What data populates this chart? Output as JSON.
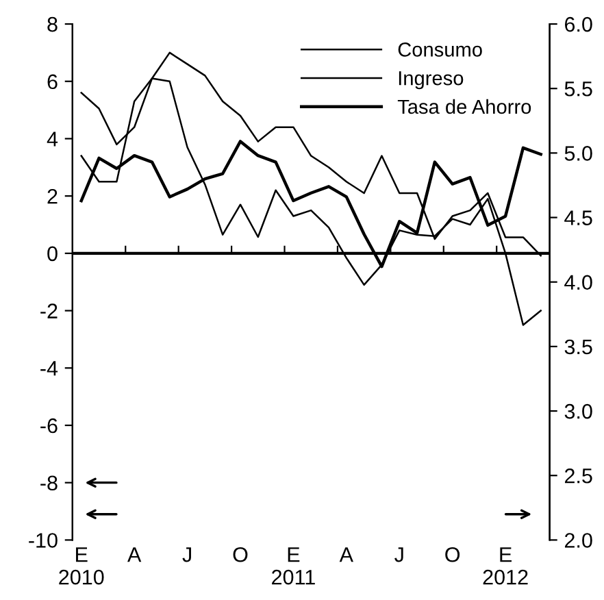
{
  "chart_data": {
    "type": "line",
    "categories": [
      "E\n2010",
      null,
      null,
      "A",
      null,
      null,
      "J",
      null,
      null,
      "O",
      null,
      null,
      "E\n2011",
      null,
      null,
      "A",
      null,
      null,
      "J",
      null,
      null,
      "O",
      null,
      null,
      "E\n2012",
      null,
      null
    ],
    "series": [
      {
        "name": "Consumo",
        "color": "#000000",
        "values": [
          3.4,
          2.5,
          2.5,
          5.3,
          6.1,
          6.0,
          3.7,
          2.4,
          0.65,
          1.7,
          0.57,
          2.2,
          1.3,
          1.5,
          0.9,
          -0.16,
          -1.1,
          -0.4,
          0.8,
          0.65,
          0.6,
          1.2,
          1.0,
          1.9,
          0.0,
          -2.5,
          -2.0
        ]
      },
      {
        "name": "Ingreso",
        "color": "#000000",
        "values": [
          5.6,
          5.05,
          3.8,
          4.4,
          6.1,
          7.0,
          6.6,
          6.2,
          5.3,
          4.8,
          3.9,
          4.4,
          4.4,
          3.4,
          3.0,
          2.5,
          2.1,
          3.4,
          2.1,
          2.1,
          0.5,
          1.3,
          1.5,
          2.1,
          0.56,
          0.56,
          -0.08
        ]
      },
      {
        "name": "Tasa de Ahorro",
        "color": "#000000",
        "axis": "y2",
        "values": [
          4.63,
          4.96,
          4.88,
          4.98,
          4.93,
          4.66,
          4.72,
          4.8,
          4.84,
          5.09,
          4.98,
          4.93,
          4.63,
          4.69,
          4.74,
          4.66,
          4.37,
          4.12,
          4.47,
          4.38,
          4.93,
          4.76,
          4.81,
          4.44,
          4.51,
          5.04,
          4.99
        ]
      }
    ],
    "ylim": [
      -10,
      8
    ],
    "yticks": [
      -10,
      -8,
      -6,
      -4,
      -2,
      0,
      2,
      4,
      6,
      8
    ],
    "y2lim": [
      2,
      6
    ],
    "y2ticks": [
      {
        "value": 2,
        "label": "2.0"
      },
      {
        "value": 2.5,
        "label": "2.5"
      },
      {
        "value": 3,
        "label": "3.0"
      },
      {
        "value": 3.5,
        "label": "3.5"
      },
      {
        "value": 4,
        "label": "4.0"
      },
      {
        "value": 4.5,
        "label": "4.5"
      },
      {
        "value": 5,
        "label": "5.0"
      },
      {
        "value": 5.5,
        "label": "5.5"
      },
      {
        "value": 6,
        "label": "6.0"
      }
    ],
    "ref_lines": [
      {
        "axis": "y",
        "value": 0,
        "color": "#000000"
      }
    ],
    "legend": "top right",
    "grid": false,
    "marker": "none",
    "line_style": "solid"
  }
}
